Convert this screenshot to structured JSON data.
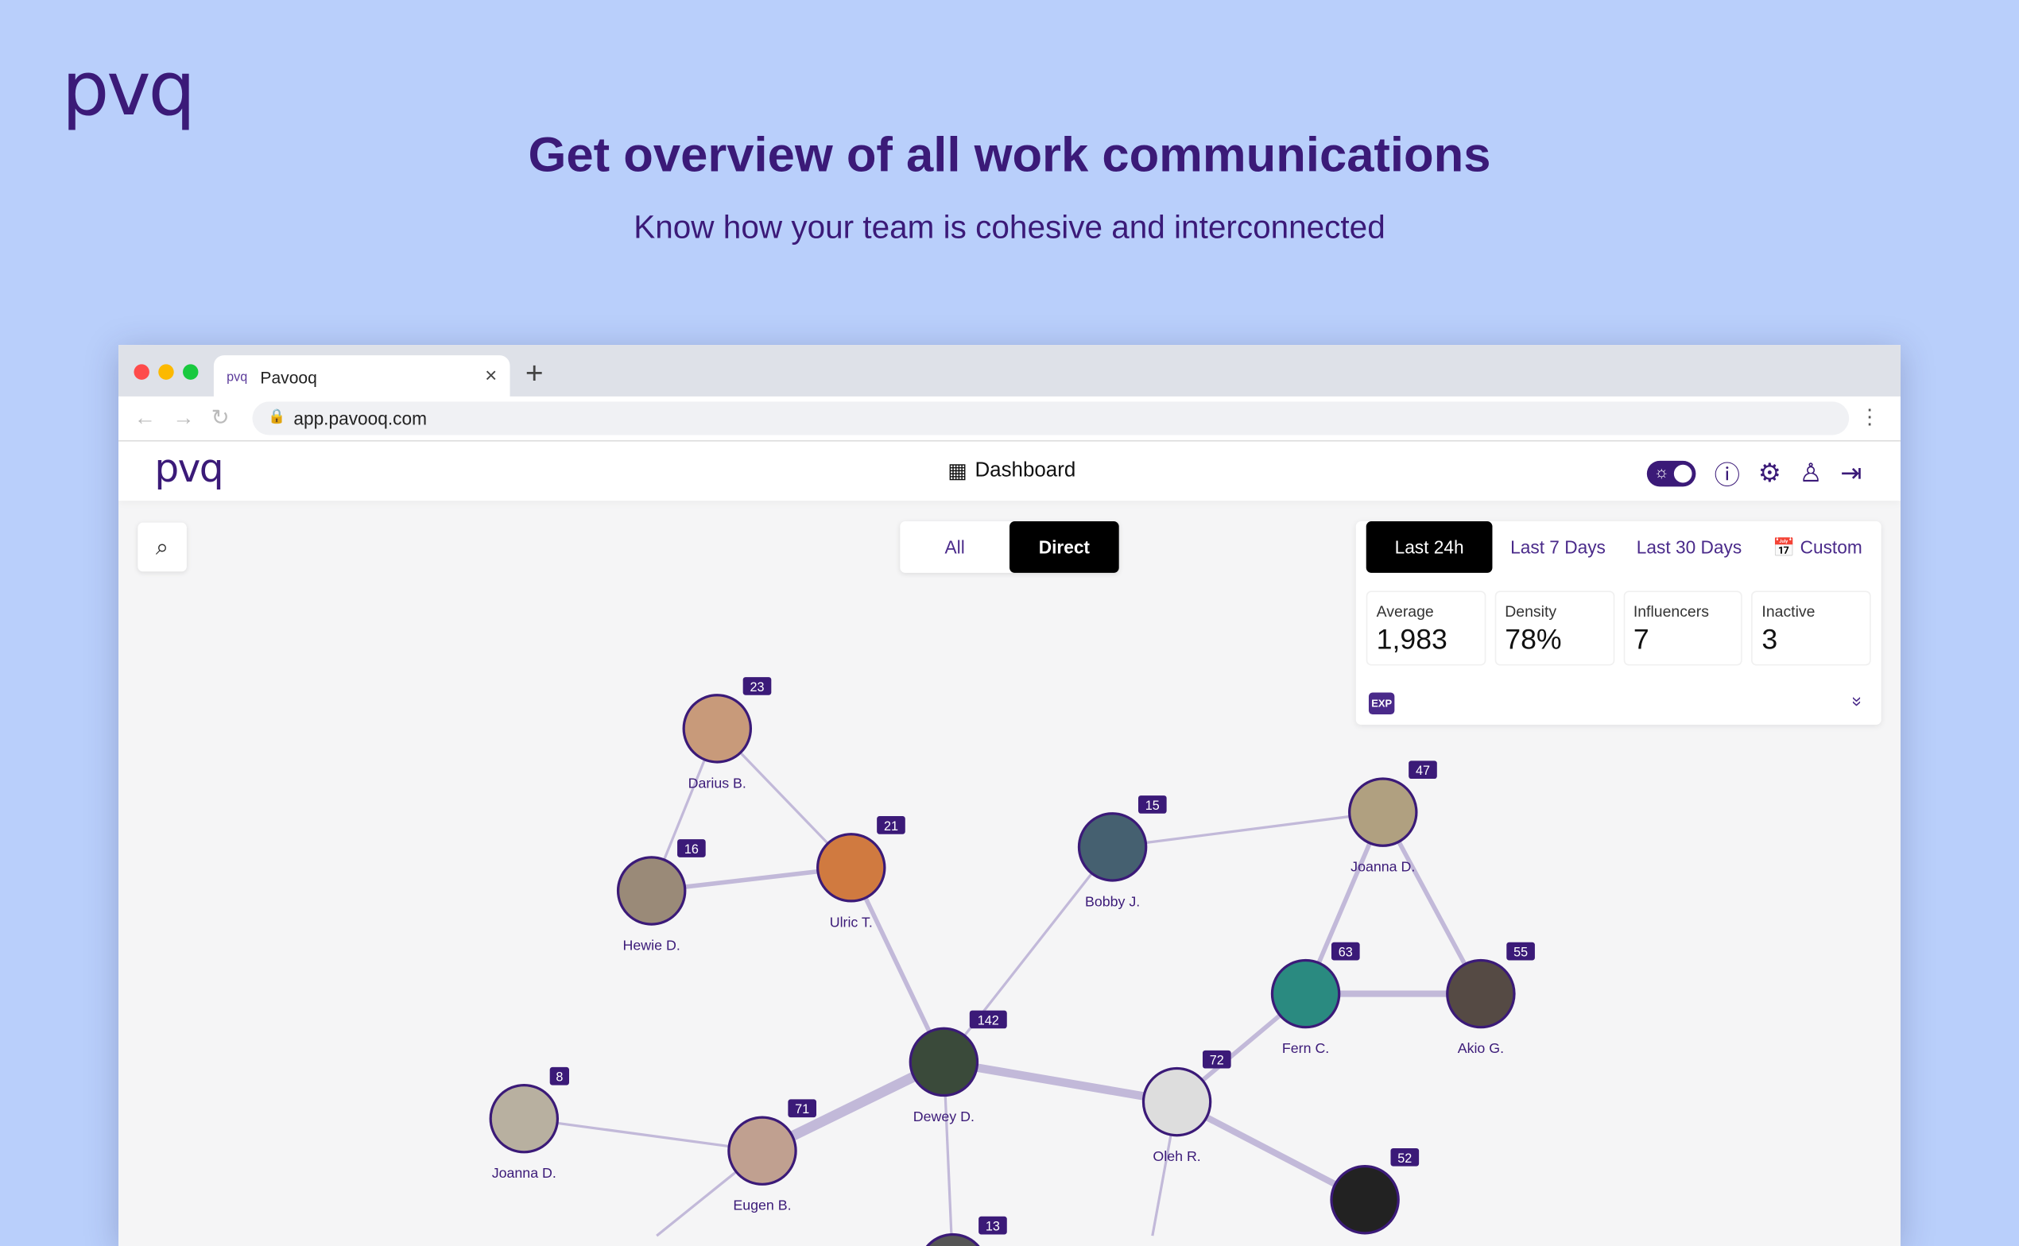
{
  "hero": {
    "logo": "pvq",
    "title": "Get overview of all work communications",
    "subtitle": "Know how your team is cohesive and interconnected"
  },
  "browser": {
    "tab_title": "Pavooq",
    "tab_favicon": "pvq",
    "url": "app.pavooq.com"
  },
  "app": {
    "logo": "pvq",
    "nav_title": "Dashboard",
    "icons": [
      "theme-toggle",
      "help-icon",
      "gear-icon",
      "user-icon",
      "logout-icon"
    ]
  },
  "filters": {
    "all": "All",
    "direct": "Direct",
    "selected": "Direct"
  },
  "ranges": {
    "items": [
      "Last 24h",
      "Last 7 Days",
      "Last 30 Days",
      "Custom"
    ],
    "selected": "Last 24h"
  },
  "stats": [
    {
      "label": "Average",
      "value": "1,983"
    },
    {
      "label": "Density",
      "value": "78%"
    },
    {
      "label": "Influencers",
      "value": "7"
    },
    {
      "label": "Inactive",
      "value": "3"
    }
  ],
  "export_label": "EXP",
  "colors": {
    "brand": "#3b1a78",
    "edge": "#c2b9d9",
    "background": "#b9cffb"
  },
  "graph": {
    "nodes": [
      {
        "id": "darius",
        "name": "Darius B.",
        "count": "23"
      },
      {
        "id": "hewie",
        "name": "Hewie D.",
        "count": "16"
      },
      {
        "id": "ulric",
        "name": "Ulric T.",
        "count": "21"
      },
      {
        "id": "bobby",
        "name": "Bobby J.",
        "count": "15"
      },
      {
        "id": "joanna1",
        "name": "Joanna D.",
        "count": "47"
      },
      {
        "id": "fern",
        "name": "Fern C.",
        "count": "63"
      },
      {
        "id": "akio",
        "name": "Akio G.",
        "count": "55"
      },
      {
        "id": "dewey",
        "name": "Dewey D.",
        "count": "142"
      },
      {
        "id": "oleh",
        "name": "Oleh R.",
        "count": "72"
      },
      {
        "id": "joanna2",
        "name": "Joanna D.",
        "count": "8"
      },
      {
        "id": "eugen",
        "name": "Eugen B.",
        "count": "71"
      },
      {
        "id": "n52",
        "name": "",
        "count": "52"
      },
      {
        "id": "n13",
        "name": "",
        "count": "13"
      }
    ],
    "edges": [
      [
        "darius",
        "hewie",
        1
      ],
      [
        "darius",
        "ulric",
        1
      ],
      [
        "hewie",
        "ulric",
        2
      ],
      [
        "ulric",
        "dewey",
        2
      ],
      [
        "bobby",
        "dewey",
        1
      ],
      [
        "bobby",
        "joanna1",
        1
      ],
      [
        "joanna1",
        "fern",
        2
      ],
      [
        "joanna1",
        "akio",
        2
      ],
      [
        "fern",
        "akio",
        3
      ],
      [
        "fern",
        "oleh",
        2
      ],
      [
        "dewey",
        "oleh",
        4
      ],
      [
        "dewey",
        "eugen",
        5
      ],
      [
        "joanna2",
        "eugen",
        1
      ],
      [
        "oleh",
        "n52",
        3
      ],
      [
        "dewey",
        "n13",
        1
      ]
    ]
  }
}
